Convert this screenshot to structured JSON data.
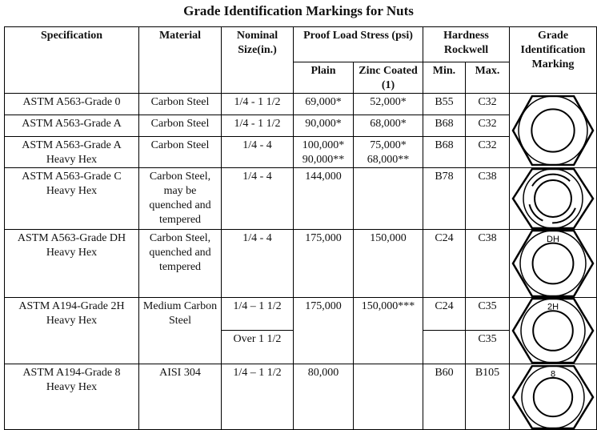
{
  "title": "Grade Identification Markings for Nuts",
  "headers": {
    "specification": "Specification",
    "material": "Material",
    "nominal_size": "Nominal Size(in.)",
    "proof_load": "Proof Load Stress (psi)",
    "plain": "Plain",
    "zinc": "Zinc Coated (1)",
    "hardness": "Hardness Rockwell",
    "min": "Min.",
    "max": "Max.",
    "marking": "Grade Identification Marking"
  },
  "rows": [
    {
      "spec": "ASTM A563-Grade 0",
      "material": "Carbon Steel",
      "size": "1/4 - 1 1/2",
      "plain": "69,000*",
      "zinc": "52,000*",
      "min": "B55",
      "max": "C32"
    },
    {
      "spec": "ASTM A563-Grade A",
      "material": "Carbon Steel",
      "size": "1/4 - 1 1/2",
      "plain": "90,000*",
      "zinc": "68,000*",
      "min": "B68",
      "max": "C32"
    },
    {
      "spec": "ASTM A563-Grade A Heavy Hex",
      "material": "Carbon Steel",
      "size": "1/4 - 4",
      "plain": "100,000* 90,000**",
      "zinc": "75,000* 68,000**",
      "min": "B68",
      "max": "C32"
    },
    {
      "spec": "ASTM A563-Grade C Heavy Hex",
      "material": "Carbon Steel, may be quenched and tempered",
      "size": "1/4 - 4",
      "plain": "144,000",
      "zinc": "",
      "min": "B78",
      "max": "C38"
    },
    {
      "spec": "ASTM A563-Grade DH Heavy Hex",
      "material": "Carbon Steel, quenched and tempered",
      "size": "1/4 - 4",
      "plain": "175,000",
      "zinc": "150,000",
      "min": "C24",
      "max": "C38",
      "mark": "DH"
    },
    {
      "spec": "ASTM A194-Grade 2H Heavy Hex",
      "material": "Medium Carbon Steel",
      "size": "1/4 – 1 1/2",
      "plain": "175,000",
      "zinc": "150,000***",
      "min": "C24",
      "max": "C35",
      "size2": "Over 1 1/2",
      "max2": "C35",
      "mark": "2H"
    },
    {
      "spec": "ASTM A194-Grade 8 Heavy Hex",
      "material": "AISI 304",
      "size": "1/4 – 1 1/2",
      "plain": "80,000",
      "zinc": "",
      "min": "B60",
      "max": "B105",
      "mark": "8"
    }
  ]
}
